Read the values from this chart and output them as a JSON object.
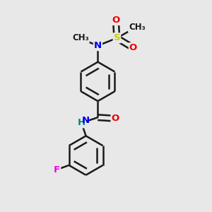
{
  "bg_color": "#e8e8e8",
  "bond_color": "#1a1a1a",
  "bond_width": 1.8,
  "dbo": 0.05,
  "atom_colors": {
    "N": "#0000ee",
    "O": "#ee0000",
    "S": "#cccc00",
    "F": "#ee00ee",
    "NH": "#0000ee",
    "H": "#008080",
    "C": "#1a1a1a"
  },
  "font_size": 9.5
}
